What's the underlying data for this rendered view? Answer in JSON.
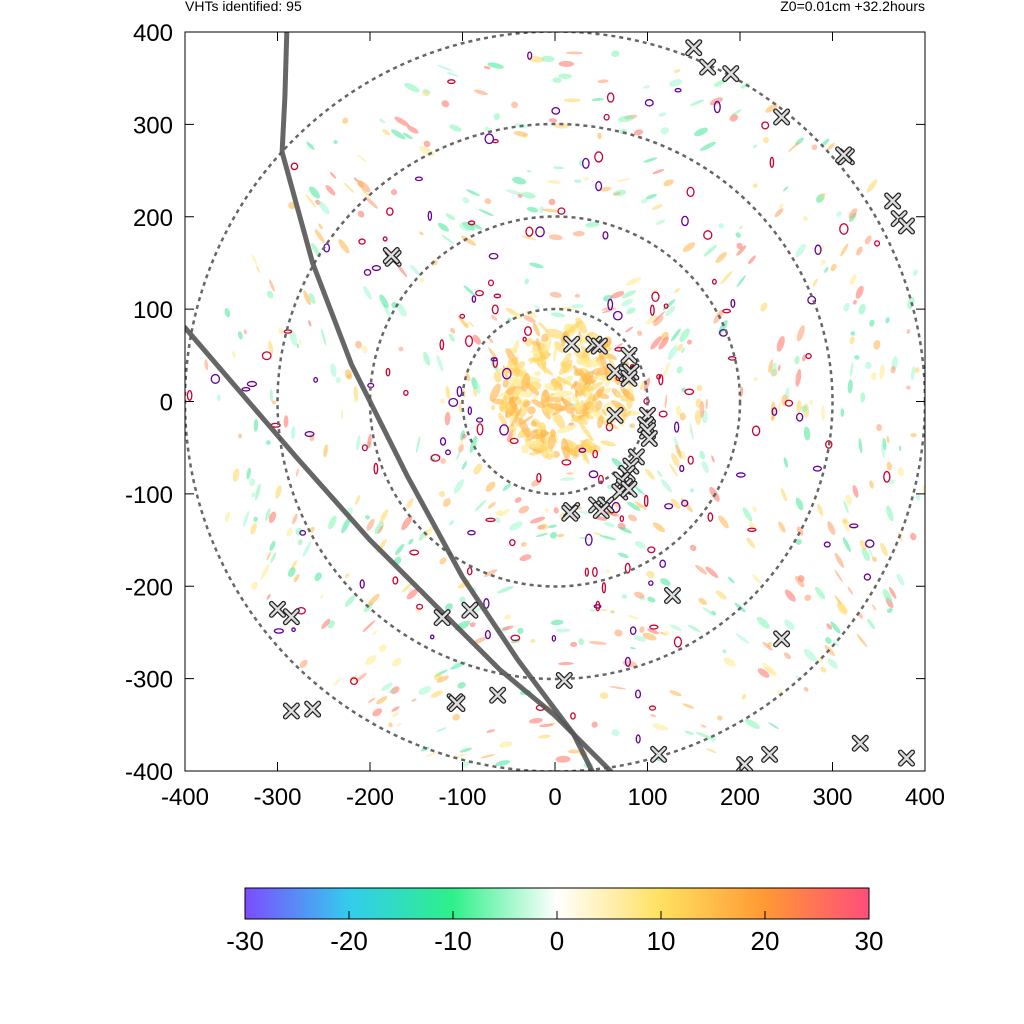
{
  "header": {
    "vht_label": "VHTs identified: 95",
    "run_label": "Z0=0.01cm  +32.2hours"
  },
  "chart_data": {
    "type": "scatter",
    "title": "",
    "xlabel": "",
    "ylabel": "",
    "xlim": [
      -400,
      400
    ],
    "ylim": [
      -400,
      400
    ],
    "xticks": [
      "-400",
      "-300",
      "-200",
      "-100",
      "0",
      "100",
      "200",
      "300",
      "400"
    ],
    "yticks": [
      "400",
      "300",
      "200",
      "100",
      "0",
      "-100",
      "-200",
      "-300",
      "-400"
    ],
    "grid": false,
    "range_rings_radius": [
      100,
      200,
      300,
      400
    ],
    "ring_center": [
      0,
      0
    ],
    "track_curves": [
      [
        [
          -290,
          400
        ],
        [
          -292,
          330
        ],
        [
          -295,
          270
        ],
        [
          -262,
          150
        ],
        [
          -220,
          40
        ],
        [
          -160,
          -80
        ],
        [
          -100,
          -190
        ],
        [
          -40,
          -280
        ],
        [
          20,
          -360
        ],
        [
          40,
          -400
        ]
      ],
      [
        [
          -400,
          80
        ],
        [
          -340,
          10
        ],
        [
          -280,
          -60
        ],
        [
          -200,
          -150
        ],
        [
          -120,
          -230
        ],
        [
          -60,
          -290
        ],
        [
          0,
          -340
        ],
        [
          60,
          -400
        ]
      ]
    ],
    "vht_markers": [
      [
        150,
        383
      ],
      [
        165,
        362
      ],
      [
        190,
        355
      ],
      [
        245,
        308
      ],
      [
        315,
        265
      ],
      [
        312,
        267
      ],
      [
        365,
        217
      ],
      [
        372,
        198
      ],
      [
        380,
        190
      ],
      [
        -175,
        155
      ],
      [
        -177,
        158
      ],
      [
        18,
        62
      ],
      [
        42,
        62
      ],
      [
        48,
        60
      ],
      [
        80,
        50
      ],
      [
        65,
        32
      ],
      [
        78,
        30
      ],
      [
        82,
        32
      ],
      [
        80,
        25
      ],
      [
        65,
        -15
      ],
      [
        100,
        -15
      ],
      [
        98,
        -25
      ],
      [
        100,
        -32
      ],
      [
        102,
        -40
      ],
      [
        88,
        -60
      ],
      [
        82,
        -70
      ],
      [
        78,
        -78
      ],
      [
        72,
        -85
      ],
      [
        75,
        -92
      ],
      [
        70,
        -98
      ],
      [
        80,
        -95
      ],
      [
        18,
        -118
      ],
      [
        16,
        -121
      ],
      [
        45,
        -112
      ],
      [
        55,
        -112
      ],
      [
        50,
        -118
      ],
      [
        -300,
        -225
      ],
      [
        -285,
        -233
      ],
      [
        -122,
        -234
      ],
      [
        -92,
        -226
      ],
      [
        127,
        -210
      ],
      [
        -62,
        -318
      ],
      [
        -108,
        -325
      ],
      [
        -106,
        -327
      ],
      [
        -285,
        -335
      ],
      [
        -262,
        -333
      ],
      [
        10,
        -302
      ],
      [
        245,
        -257
      ],
      [
        112,
        -382
      ],
      [
        232,
        -382
      ],
      [
        205,
        -393
      ],
      [
        330,
        -370
      ],
      [
        380,
        -386
      ]
    ],
    "colorbar": {
      "min": -30,
      "max": 30,
      "ticks": [
        "-30",
        "-20",
        "-10",
        "0",
        "10",
        "20",
        "30"
      ],
      "colors": [
        "#7b4dff",
        "#33ccee",
        "#2ef08a",
        "#ffffff",
        "#ffe060",
        "#ff9933",
        "#ff4d7a"
      ]
    }
  }
}
